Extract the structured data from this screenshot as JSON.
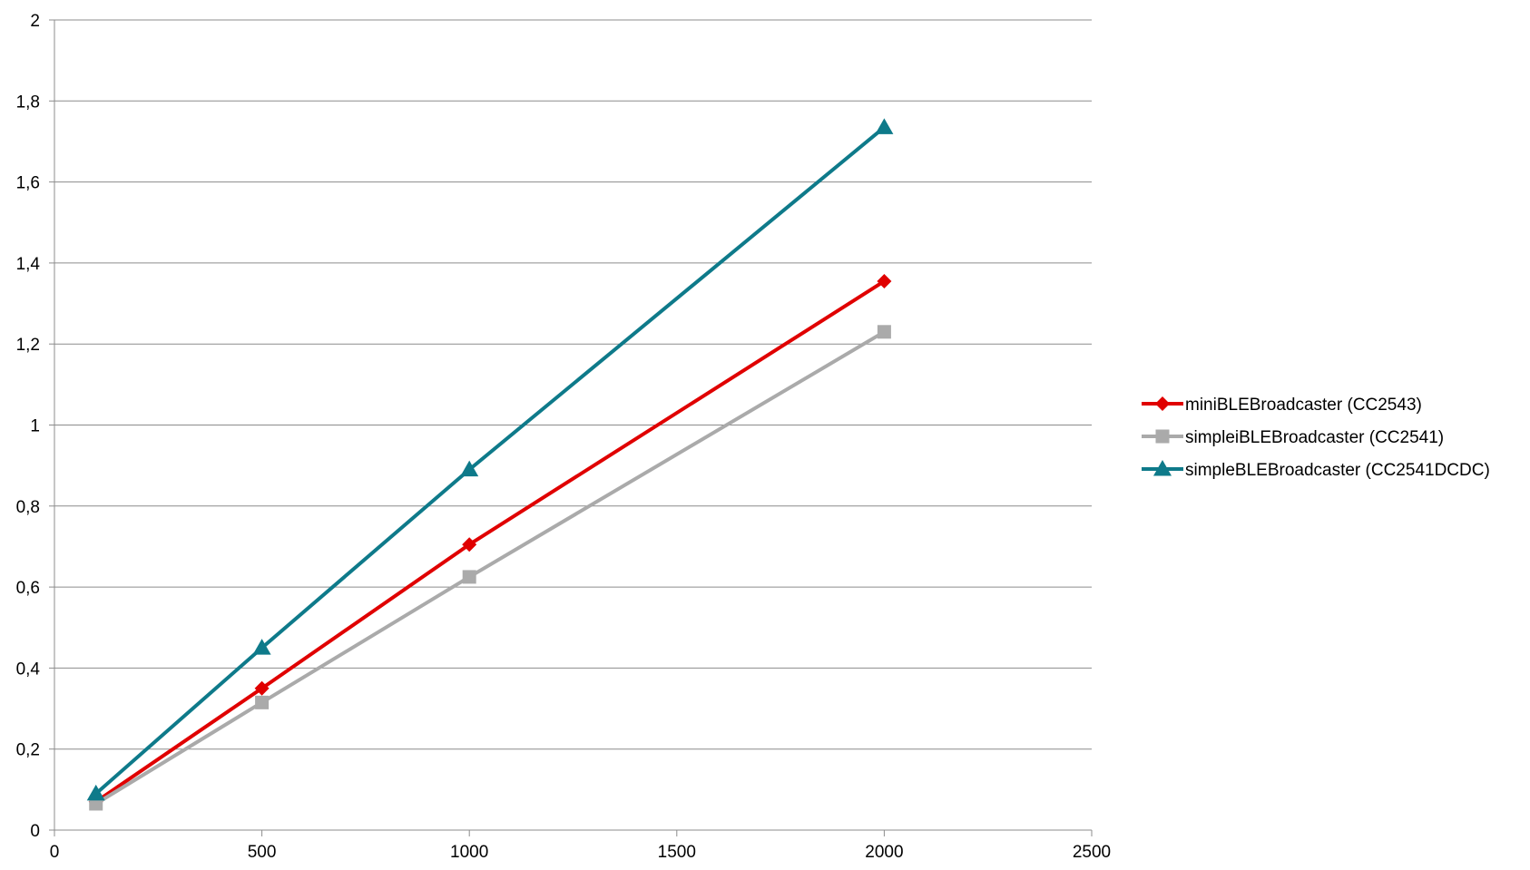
{
  "chart_data": {
    "type": "line",
    "title": "",
    "xlabel": "",
    "ylabel": "",
    "xlim": [
      0,
      2500
    ],
    "ylim": [
      0,
      2
    ],
    "x_ticks": [
      0,
      500,
      1000,
      1500,
      2000,
      2500
    ],
    "x_tick_labels": [
      "0",
      "500",
      "1000",
      "1500",
      "2000",
      "2500"
    ],
    "y_ticks": [
      0,
      0.2,
      0.4,
      0.6,
      0.8,
      1,
      1.2,
      1.4,
      1.6,
      1.8,
      2
    ],
    "y_tick_labels": [
      "0",
      "0,2",
      "0,4",
      "0,6",
      "0,8",
      "1",
      "1,2",
      "1,4",
      "1,6",
      "1,8",
      "2"
    ],
    "grid": "horizontal",
    "legend_position": "right",
    "x": [
      100,
      500,
      1000,
      2000
    ],
    "series": [
      {
        "name": "miniBLEBroadcaster (CC2543)",
        "color": "#e00000",
        "marker": "diamond",
        "values": [
          0.07,
          0.35,
          0.705,
          1.355
        ]
      },
      {
        "name": "simpleiBLEBroadcaster (CC2541)",
        "color": "#aaaaaa",
        "marker": "square",
        "values": [
          0.065,
          0.315,
          0.625,
          1.23
        ]
      },
      {
        "name": "simpleBLEBroadcaster (CC2541DCDC)",
        "color": "#0e7a8a",
        "marker": "triangle",
        "values": [
          0.09,
          0.45,
          0.89,
          1.735
        ]
      }
    ]
  }
}
